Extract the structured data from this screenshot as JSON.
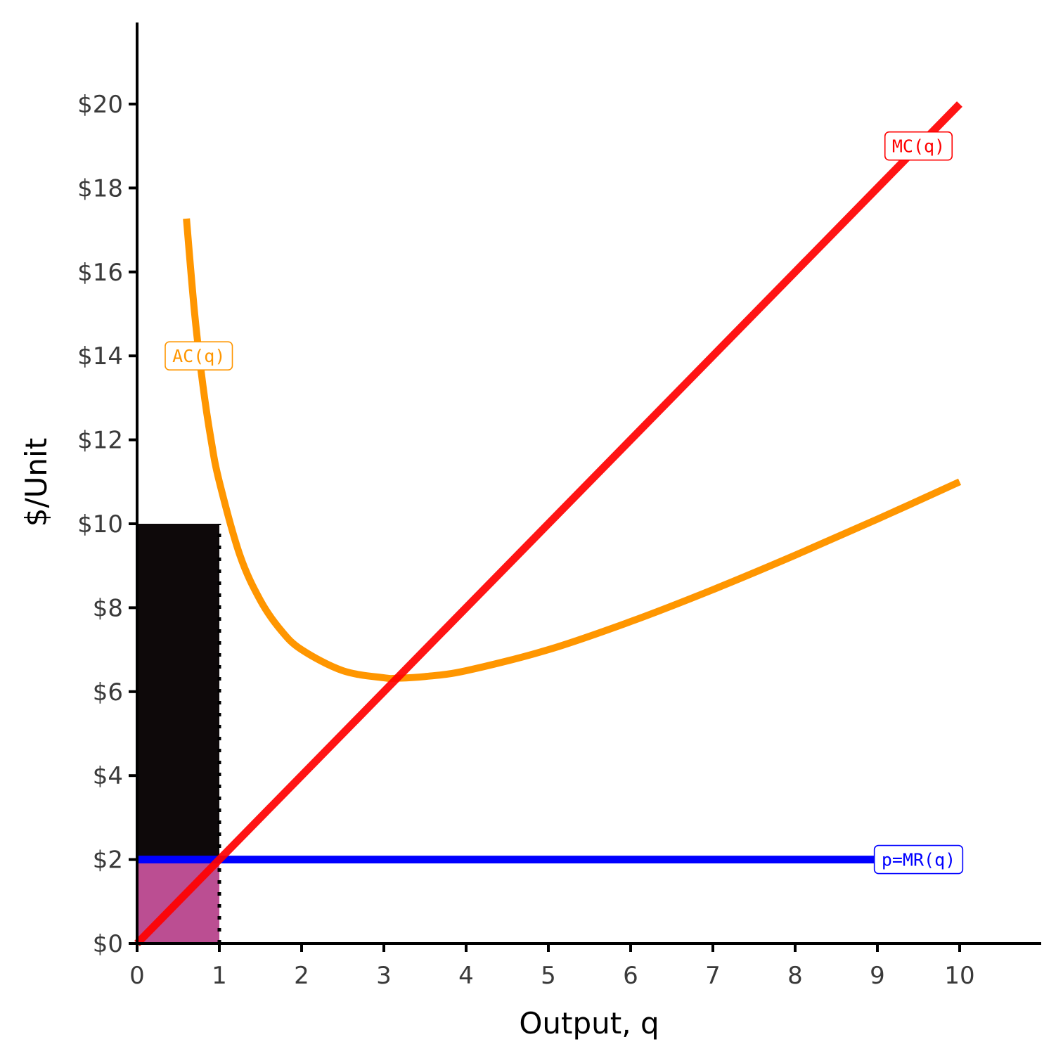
{
  "chart_data": {
    "type": "line",
    "xlabel": "Output, q",
    "ylabel": "$/Unit",
    "xlim": [
      0,
      11
    ],
    "ylim": [
      0,
      22
    ],
    "x_ticks": [
      {
        "value": 0,
        "label": "0"
      },
      {
        "value": 1,
        "label": "1"
      },
      {
        "value": 2,
        "label": "2"
      },
      {
        "value": 3,
        "label": "3"
      },
      {
        "value": 4,
        "label": "4"
      },
      {
        "value": 5,
        "label": "5"
      },
      {
        "value": 6,
        "label": "6"
      },
      {
        "value": 7,
        "label": "7"
      },
      {
        "value": 8,
        "label": "8"
      },
      {
        "value": 9,
        "label": "9"
      },
      {
        "value": 10,
        "label": "10"
      }
    ],
    "y_ticks": [
      {
        "value": 0,
        "label": "$0"
      },
      {
        "value": 2,
        "label": "$2"
      },
      {
        "value": 4,
        "label": "$4"
      },
      {
        "value": 6,
        "label": "$6"
      },
      {
        "value": 8,
        "label": "$8"
      },
      {
        "value": 10,
        "label": "$10"
      },
      {
        "value": 12,
        "label": "$12"
      },
      {
        "value": 14,
        "label": "$14"
      },
      {
        "value": 16,
        "label": "$16"
      },
      {
        "value": 18,
        "label": "$18"
      },
      {
        "value": 20,
        "label": "$20"
      }
    ],
    "grid": false,
    "series": [
      {
        "name": "MC(q)",
        "color": "#ff0000",
        "x": [
          0,
          10
        ],
        "y": [
          0,
          20
        ],
        "label_at": [
          9.5,
          19
        ]
      },
      {
        "name": "AC(q)",
        "color": "#ff9600",
        "x": [
          0.6,
          0.7,
          0.8,
          0.9,
          1.0,
          1.25,
          1.5,
          1.75,
          2.0,
          2.5,
          3.0,
          3.16,
          3.5,
          4.0,
          5.0,
          6.0,
          7.0,
          8.0,
          9.0,
          10.0
        ],
        "y": [
          17.27,
          15.0,
          13.3,
          11.99,
          11.0,
          9.25,
          8.17,
          7.46,
          7.0,
          6.5,
          6.33,
          6.32,
          6.36,
          6.5,
          7.0,
          7.67,
          8.43,
          9.25,
          10.11,
          11.0
        ],
        "label_at": [
          0.75,
          14
        ]
      },
      {
        "name": "p=MR(q)",
        "color": "#0000ff",
        "x": [
          0,
          9.0
        ],
        "y": [
          2,
          2
        ],
        "label_at": [
          9.5,
          2
        ]
      }
    ],
    "shaded_regions": [
      {
        "x": [
          0,
          1
        ],
        "y": [
          2,
          10
        ],
        "color": "#0e090a"
      },
      {
        "x": [
          0,
          1
        ],
        "y": [
          0,
          2
        ],
        "color": "#bb4e92"
      }
    ],
    "reference_lines": [
      {
        "x": 1,
        "y": [
          0,
          10
        ],
        "style": "dotted",
        "color": "#000000"
      }
    ]
  }
}
